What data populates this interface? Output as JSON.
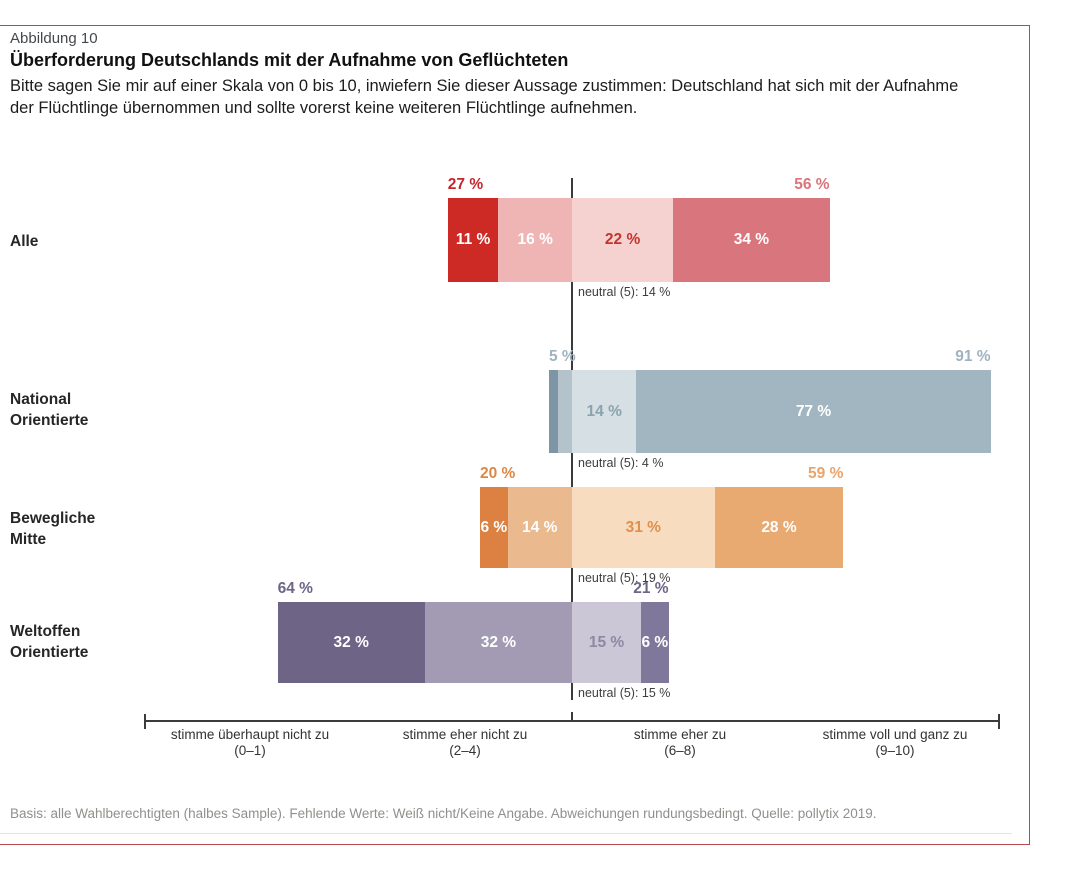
{
  "figure": {
    "label": "Abbildung 10",
    "title": "Überforderung Deutschlands mit der Aufnahme von Geflüchteten",
    "subtitle": "Bitte sagen Sie mir auf einer Skala von 0 bis 10, inwiefern Sie dieser Aussage zustimmen: Deutschland hat sich mit der Aufnahme der Flüchtlinge übernommen und sollte vorerst keine weiteren Flüchtlinge aufnehmen.",
    "footer": "Basis: alle Wahlberechtigten (halbes Sample). Fehlende Werte: Weiß nicht/Keine Angabe. Abweichungen rundungsbedingt. Quelle: pollytix 2019."
  },
  "chart_data": {
    "type": "bar",
    "variant": "diverging stacked bars centered on neutral (5)",
    "scale": "Zustimmungsskala 0–10",
    "legend_position": "none",
    "axis_categories": [
      {
        "label": "stimme überhaupt nicht zu",
        "range": "(0–1)"
      },
      {
        "label": "stimme eher nicht zu",
        "range": "(2–4)"
      },
      {
        "label": "stimme eher zu",
        "range": "(6–8)"
      },
      {
        "label": "stimme voll und ganz zu",
        "range": "(9–10)"
      }
    ],
    "groups": [
      {
        "name": "Alle",
        "disagree_total": {
          "label": "27 %",
          "value": 27,
          "color": "#c5262a"
        },
        "agree_total": {
          "label": "56 %",
          "value": 56,
          "color": "#d9747c"
        },
        "neutral_note": "neutral (5): 14 %",
        "neutral_value": 14,
        "segments": [
          {
            "value": 11,
            "label": "11 %",
            "side": "left",
            "bg": "#cd2a26",
            "fg": "#ffffff"
          },
          {
            "value": 16,
            "label": "16 %",
            "side": "left",
            "bg": "#efb4b4",
            "fg": "#ffffff"
          },
          {
            "value": 22,
            "label": "22 %",
            "side": "right",
            "bg": "#f5d2d0",
            "fg": "#c2342d"
          },
          {
            "value": 34,
            "label": "34 %",
            "side": "right",
            "bg": "#d9757d",
            "fg": "#ffffff"
          }
        ]
      },
      {
        "name": "National Orientierte",
        "disagree_total": {
          "label": "5 %",
          "value": 5,
          "color": "#9fb3bf"
        },
        "agree_total": {
          "label": "91 %",
          "value": 91,
          "color": "#9fb3bf"
        },
        "neutral_note": "neutral (5): 4 %",
        "neutral_value": 4,
        "segments": [
          {
            "value": 2,
            "label": "",
            "side": "left",
            "bg": "#7e95a5",
            "fg": "#ffffff"
          },
          {
            "value": 3,
            "label": "",
            "side": "left",
            "bg": "#b3c2cb",
            "fg": "#ffffff"
          },
          {
            "value": 14,
            "label": "14 %",
            "side": "right",
            "bg": "#d6dfe4",
            "fg": "#8ba3af"
          },
          {
            "value": 77,
            "label": "77 %",
            "side": "right",
            "bg": "#a2b6c1",
            "fg": "#ffffff"
          }
        ]
      },
      {
        "name": "Bewegliche Mitte",
        "disagree_total": {
          "label": "20 %",
          "value": 20,
          "color": "#dd8747"
        },
        "agree_total": {
          "label": "59 %",
          "value": 59,
          "color": "#e9a36b"
        },
        "neutral_note": "neutral (5): 19 %",
        "neutral_value": 19,
        "segments": [
          {
            "value": 6,
            "label": "6 %",
            "side": "left",
            "bg": "#dc8142",
            "fg": "#ffffff"
          },
          {
            "value": 14,
            "label": "14 %",
            "side": "left",
            "bg": "#eab98d",
            "fg": "#ffffff"
          },
          {
            "value": 31,
            "label": "31 %",
            "side": "right",
            "bg": "#f7dcc0",
            "fg": "#df904d"
          },
          {
            "value": 28,
            "label": "28 %",
            "side": "right",
            "bg": "#e8aa70",
            "fg": "#ffffff"
          }
        ]
      },
      {
        "name": "Weltoffen Orientierte",
        "disagree_total": {
          "label": "64 %",
          "value": 64,
          "color": "#6e6486"
        },
        "agree_total": {
          "label": "21 %",
          "value": 21,
          "color": "#6e6486"
        },
        "neutral_note": "neutral (5): 15 %",
        "neutral_value": 15,
        "segments": [
          {
            "value": 32,
            "label": "32 %",
            "side": "left",
            "bg": "#6e6486",
            "fg": "#ffffff"
          },
          {
            "value": 32,
            "label": "32 %",
            "side": "left",
            "bg": "#a29bb3",
            "fg": "#ffffff"
          },
          {
            "value": 15,
            "label": "15 %",
            "side": "right",
            "bg": "#cbc7d7",
            "fg": "#8d89a3"
          },
          {
            "value": 6,
            "label": "6 %",
            "side": "right",
            "bg": "#80789b",
            "fg": "#ffffff"
          }
        ]
      }
    ]
  }
}
